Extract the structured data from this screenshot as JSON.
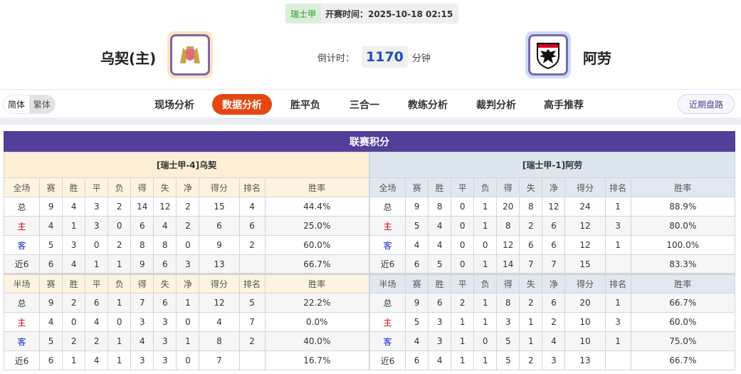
{
  "match": {
    "league": "瑞士甲",
    "kickoff_label": "开赛时间：",
    "kickoff": "2025-10-18 02:15",
    "countdown_label": "倒计时：",
    "countdown": "1170",
    "countdown_unit": "分钟"
  },
  "home": {
    "name": "乌契(主)",
    "logo": "lions-crest-logo"
  },
  "away": {
    "name": "阿劳",
    "logo": "eagle-shield-logo"
  },
  "lang": {
    "simplified": "简体",
    "traditional": "繁体"
  },
  "tabs": [
    {
      "label": "现场分析"
    },
    {
      "label": "数据分析",
      "active": true
    },
    {
      "label": "胜平负"
    },
    {
      "label": "三合一"
    },
    {
      "label": "教练分析"
    },
    {
      "label": "裁判分析"
    },
    {
      "label": "高手推荐"
    }
  ],
  "recent_button": "近期盘路",
  "section_title": "联赛积分",
  "colors": {
    "accent": "#e44711",
    "header": "#533f9a",
    "home_label": "#d0021b",
    "away_label": "#1a2fcf"
  },
  "columns": [
    "赛",
    "胜",
    "平",
    "负",
    "得",
    "失",
    "净",
    "得分",
    "排名",
    "胜率"
  ],
  "tables": [
    {
      "title": "[瑞士甲-4]乌契",
      "full": {
        "label": "全场",
        "rows": [
          [
            "总",
            "9",
            "4",
            "3",
            "2",
            "14",
            "12",
            "2",
            "15",
            "4",
            "44.4%"
          ],
          [
            "主",
            "4",
            "1",
            "3",
            "0",
            "6",
            "4",
            "2",
            "6",
            "6",
            "25.0%"
          ],
          [
            "客",
            "5",
            "3",
            "0",
            "2",
            "8",
            "8",
            "0",
            "9",
            "2",
            "60.0%"
          ],
          [
            "近6",
            "6",
            "4",
            "1",
            "1",
            "9",
            "6",
            "3",
            "13",
            "",
            "66.7%"
          ]
        ]
      },
      "half": {
        "label": "半场",
        "rows": [
          [
            "总",
            "9",
            "2",
            "6",
            "1",
            "7",
            "6",
            "1",
            "12",
            "5",
            "22.2%"
          ],
          [
            "主",
            "4",
            "0",
            "4",
            "0",
            "3",
            "3",
            "0",
            "4",
            "7",
            "0.0%"
          ],
          [
            "客",
            "5",
            "2",
            "2",
            "1",
            "4",
            "3",
            "1",
            "8",
            "2",
            "40.0%"
          ],
          [
            "近6",
            "6",
            "1",
            "4",
            "1",
            "3",
            "3",
            "0",
            "7",
            "",
            "16.7%"
          ]
        ]
      }
    },
    {
      "title": "[瑞士甲-1]阿劳",
      "full": {
        "label": "全场",
        "rows": [
          [
            "总",
            "9",
            "8",
            "0",
            "1",
            "20",
            "8",
            "12",
            "24",
            "1",
            "88.9%"
          ],
          [
            "主",
            "5",
            "4",
            "0",
            "1",
            "8",
            "2",
            "6",
            "12",
            "3",
            "80.0%"
          ],
          [
            "客",
            "4",
            "4",
            "0",
            "0",
            "12",
            "6",
            "6",
            "12",
            "1",
            "100.0%"
          ],
          [
            "近6",
            "6",
            "5",
            "0",
            "1",
            "14",
            "7",
            "7",
            "15",
            "",
            "83.3%"
          ]
        ]
      },
      "half": {
        "label": "半场",
        "rows": [
          [
            "总",
            "9",
            "6",
            "2",
            "1",
            "8",
            "2",
            "6",
            "20",
            "1",
            "66.7%"
          ],
          [
            "主",
            "5",
            "3",
            "1",
            "1",
            "3",
            "1",
            "2",
            "10",
            "3",
            "60.0%"
          ],
          [
            "客",
            "4",
            "3",
            "1",
            "0",
            "5",
            "1",
            "4",
            "10",
            "1",
            "75.0%"
          ],
          [
            "近6",
            "6",
            "4",
            "1",
            "1",
            "5",
            "2",
            "3",
            "13",
            "",
            "66.7%"
          ]
        ]
      }
    }
  ]
}
